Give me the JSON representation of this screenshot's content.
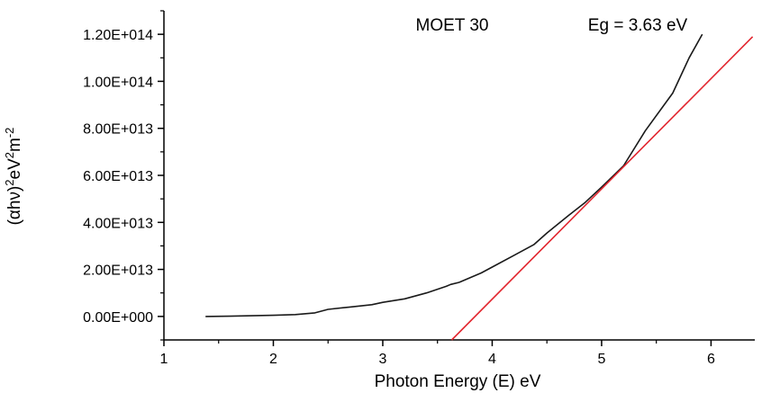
{
  "chart_data": {
    "type": "line",
    "title": "",
    "xlabel": "Photon Energy (E) eV",
    "ylabel_parts": [
      {
        "text": "(αhν)",
        "sup": false
      },
      {
        "text": "2",
        "sup": true
      },
      {
        "text": "eV",
        "sup": false
      },
      {
        "text": "2",
        "sup": true
      },
      {
        "text": "m",
        "sup": false
      },
      {
        "text": "-2",
        "sup": true
      }
    ],
    "xlim": [
      1,
      6.4
    ],
    "ylim": [
      -10000000000000.0,
      130000000000000.0
    ],
    "x_ticks": [
      1,
      2,
      3,
      4,
      5,
      6
    ],
    "x_tick_labels": [
      "1",
      "2",
      "3",
      "4",
      "5",
      "6"
    ],
    "y_ticks": [
      0,
      20000000000000.0,
      40000000000000.0,
      60000000000000.0,
      80000000000000.0,
      100000000000000.0,
      120000000000000.0
    ],
    "y_tick_labels": [
      "0.00E+000",
      "2.00E+013",
      "4.00E+013",
      "6.00E+013",
      "8.00E+013",
      "1.00E+014",
      "1.20E+014"
    ],
    "grid": false,
    "annotations": [
      {
        "text": "MOET 30",
        "x": 3.55,
        "y": 124000000000000.0
      },
      {
        "text": "Eg = 3.63 eV",
        "x": 5.45,
        "y": 124000000000000.0
      }
    ],
    "series": [
      {
        "color": "#1a1a1a",
        "x": [
          1.38,
          1.6,
          1.8,
          2.0,
          2.2,
          2.38,
          2.45,
          2.5,
          2.7,
          2.9,
          3.0,
          3.2,
          3.4,
          3.58,
          3.62,
          3.7,
          3.9,
          4.0,
          4.2,
          4.38,
          4.5,
          4.7,
          4.85,
          5.0,
          5.2,
          5.4,
          5.65,
          5.8,
          5.92
        ],
        "y": [
          0.0,
          100000000000.0,
          300000000000.0,
          500000000000.0,
          800000000000.0,
          1500000000000.0,
          2400000000000.0,
          3000000000000.0,
          4000000000000.0,
          5000000000000.0,
          6000000000000.0,
          7500000000000.0,
          10000000000000.0,
          12800000000000.0,
          13600000000000.0,
          14500000000000.0,
          18500000000000.0,
          21000000000000.0,
          26000000000000.0,
          30500000000000.0,
          35500000000000.0,
          43000000000000.0,
          48500000000000.0,
          55000000000000.0,
          64000000000000.0,
          79000000000000.0,
          95000000000000.0,
          110000000000000.0,
          120000000000000.0
        ]
      },
      {
        "color": "#e2262f",
        "x": [
          3.63,
          6.38
        ],
        "y": [
          -10000000000000.0,
          119000000000000.0
        ]
      }
    ]
  }
}
